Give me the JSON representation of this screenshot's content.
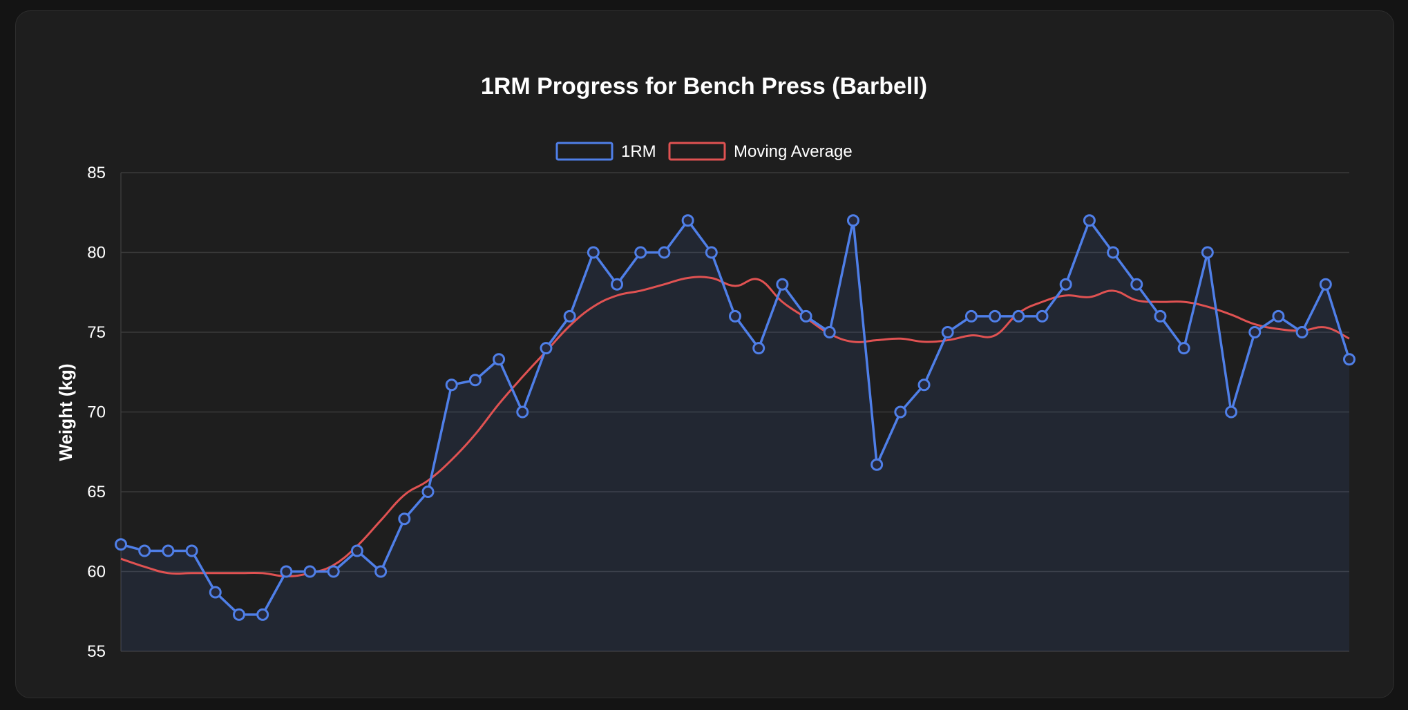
{
  "chart_data": {
    "type": "line",
    "title": "1RM Progress for Bench Press (Barbell)",
    "xlabel": "",
    "ylabel": "Weight (kg)",
    "ylim": [
      55,
      85
    ],
    "yticks": [
      55,
      60,
      65,
      70,
      75,
      80,
      85
    ],
    "grid": true,
    "legend_position": "top-center",
    "series": [
      {
        "name": "1RM",
        "color": "#4f7fe8",
        "fill": true,
        "markers": "circle",
        "values": [
          61.7,
          61.3,
          61.3,
          61.3,
          58.7,
          57.3,
          57.3,
          60,
          60,
          60,
          61.3,
          60,
          63.3,
          65,
          71.7,
          72,
          73.3,
          70,
          74,
          76,
          80,
          78,
          80,
          80,
          82,
          80,
          76,
          74,
          78,
          76,
          75,
          82,
          66.7,
          70,
          71.7,
          75,
          76,
          76,
          76,
          76,
          78,
          82,
          80,
          78,
          76,
          74,
          80,
          70,
          75,
          76,
          75,
          78,
          73.3
        ]
      },
      {
        "name": "Moving Average",
        "color": "#e05252",
        "fill": false,
        "markers": "none",
        "values": [
          60.8,
          60.3,
          59.9,
          59.9,
          59.9,
          59.9,
          59.9,
          59.7,
          59.9,
          60.4,
          61.6,
          63.2,
          64.8,
          65.7,
          67.0,
          68.6,
          70.5,
          72.2,
          73.8,
          75.4,
          76.6,
          77.3,
          77.6,
          78.0,
          78.4,
          78.4,
          77.9,
          78.3,
          76.9,
          75.9,
          74.9,
          74.4,
          74.5,
          74.6,
          74.4,
          74.5,
          74.8,
          74.8,
          76.2,
          76.9,
          77.3,
          77.2,
          77.6,
          77.0,
          76.9,
          76.9,
          76.6,
          76.1,
          75.5,
          75.2,
          75.1,
          75.3,
          74.6
        ]
      }
    ]
  }
}
